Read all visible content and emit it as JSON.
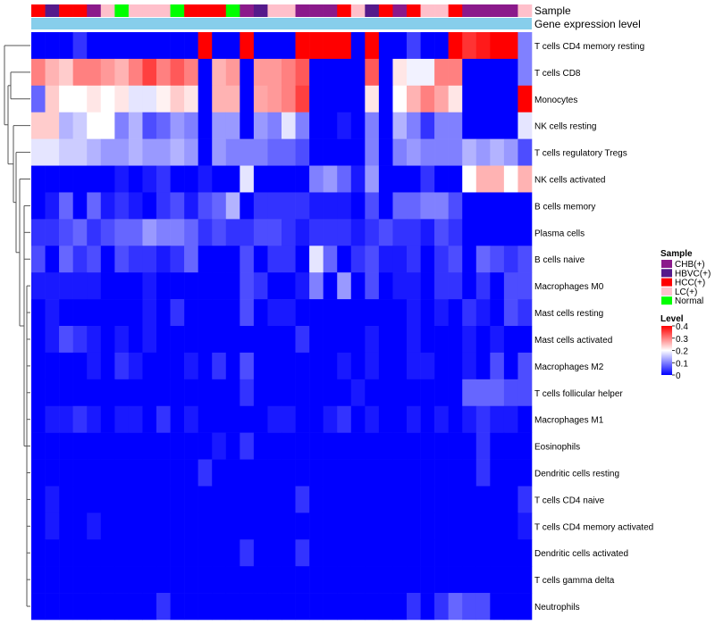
{
  "chart_data": {
    "type": "heatmap",
    "title": "",
    "annotation_tracks": [
      "Sample",
      "Gene expression level"
    ],
    "sample_groups": [
      "HCC(+)",
      "HBVC(+)",
      "HCC(+)",
      "HCC(+)",
      "CHB(+)",
      "LC(+)",
      "Normal",
      "LC(+)",
      "LC(+)",
      "LC(+)",
      "Normal",
      "HCC(+)",
      "HCC(+)",
      "HCC(+)",
      "Normal",
      "CHB(+)",
      "HBVC(+)",
      "LC(+)",
      "LC(+)",
      "CHB(+)",
      "CHB(+)",
      "CHB(+)",
      "HCC(+)",
      "LC(+)",
      "HBVC(+)",
      "HCC(+)",
      "CHB(+)",
      "HCC(+)",
      "LC(+)",
      "LC(+)",
      "HCC(+)",
      "CHB(+)",
      "CHB(+)",
      "CHB(+)",
      "CHB(+)",
      "LC(+)"
    ],
    "rows": [
      "T cells CD4 memory resting",
      "T cells CD8",
      "Monocytes",
      "NK cells resting",
      "T cells regulatory  Tregs",
      "NK cells activated",
      "B cells memory",
      "Plasma cells",
      "B cells naive",
      "Macrophages M0",
      "Mast cells resting",
      "Mast cells activated",
      "Macrophages M2",
      "T cells follicular helper",
      "Macrophages M1",
      "Eosinophils",
      "Dendritic cells resting",
      "T cells CD4 naive",
      "T cells CD4 memory activated",
      "Dendritic cells activated",
      "T cells gamma delta",
      "Neutrophils"
    ],
    "values": [
      [
        0.0,
        0.0,
        0.0,
        0.04,
        0.0,
        0.0,
        0.0,
        0.0,
        0.0,
        0.0,
        0.0,
        0.0,
        0.4,
        0.0,
        0.0,
        0.4,
        0.0,
        0.0,
        0.0,
        0.4,
        0.4,
        0.4,
        0.4,
        0.0,
        0.4,
        0.0,
        0.0,
        0.05,
        0.0,
        0.0,
        0.4,
        0.36,
        0.38,
        0.4,
        0.4,
        0.1
      ],
      [
        0.3,
        0.26,
        0.24,
        0.3,
        0.3,
        0.28,
        0.26,
        0.3,
        0.35,
        0.3,
        0.33,
        0.3,
        0.0,
        0.26,
        0.28,
        0.0,
        0.28,
        0.28,
        0.3,
        0.33,
        0.0,
        0.0,
        0.0,
        0.0,
        0.33,
        0.0,
        0.22,
        0.19,
        0.19,
        0.3,
        0.3,
        0.0,
        0.0,
        0.0,
        0.0,
        0.1
      ],
      [
        0.08,
        0.24,
        0.2,
        0.2,
        0.22,
        0.2,
        0.22,
        0.18,
        0.18,
        0.21,
        0.24,
        0.22,
        0.0,
        0.26,
        0.26,
        0.0,
        0.27,
        0.28,
        0.3,
        0.35,
        0.0,
        0.0,
        0.0,
        0.0,
        0.22,
        0.0,
        0.2,
        0.26,
        0.3,
        0.27,
        0.22,
        0.0,
        0.0,
        0.0,
        0.0,
        0.4
      ],
      [
        0.24,
        0.24,
        0.14,
        0.16,
        0.2,
        0.2,
        0.1,
        0.14,
        0.06,
        0.08,
        0.12,
        0.1,
        0.0,
        0.12,
        0.12,
        0.0,
        0.12,
        0.1,
        0.18,
        0.1,
        0.0,
        0.0,
        0.02,
        0.0,
        0.1,
        0.0,
        0.14,
        0.1,
        0.04,
        0.1,
        0.1,
        0.0,
        0.0,
        0.0,
        0.0,
        0.18
      ],
      [
        0.18,
        0.18,
        0.16,
        0.16,
        0.14,
        0.12,
        0.12,
        0.14,
        0.12,
        0.12,
        0.14,
        0.12,
        0.0,
        0.12,
        0.1,
        0.1,
        0.1,
        0.08,
        0.08,
        0.06,
        0.0,
        0.0,
        0.0,
        0.0,
        0.1,
        0.0,
        0.1,
        0.12,
        0.1,
        0.1,
        0.1,
        0.14,
        0.12,
        0.14,
        0.12,
        0.06
      ],
      [
        0.0,
        0.0,
        0.0,
        0.0,
        0.0,
        0.0,
        0.02,
        0.0,
        0.02,
        0.04,
        0.0,
        0.0,
        0.02,
        0.0,
        0.0,
        0.18,
        0.0,
        0.0,
        0.0,
        0.0,
        0.1,
        0.12,
        0.08,
        0.02,
        0.12,
        0.0,
        0.0,
        0.0,
        0.04,
        0.0,
        0.0,
        0.2,
        0.26,
        0.26,
        0.2,
        0.26
      ],
      [
        0.0,
        0.02,
        0.08,
        0.0,
        0.08,
        0.02,
        0.04,
        0.02,
        0.0,
        0.04,
        0.06,
        0.02,
        0.06,
        0.08,
        0.14,
        0.0,
        0.04,
        0.04,
        0.04,
        0.04,
        0.02,
        0.02,
        0.02,
        0.0,
        0.06,
        0.0,
        0.08,
        0.08,
        0.1,
        0.1,
        0.06,
        0.0,
        0.0,
        0.0,
        0.0,
        0.0
      ],
      [
        0.04,
        0.04,
        0.06,
        0.08,
        0.04,
        0.06,
        0.08,
        0.08,
        0.12,
        0.1,
        0.1,
        0.08,
        0.04,
        0.06,
        0.04,
        0.04,
        0.06,
        0.06,
        0.04,
        0.02,
        0.04,
        0.04,
        0.04,
        0.02,
        0.04,
        0.06,
        0.04,
        0.04,
        0.02,
        0.06,
        0.04,
        0.0,
        0.0,
        0.0,
        0.0,
        0.0
      ],
      [
        0.06,
        0.0,
        0.08,
        0.04,
        0.06,
        0.0,
        0.06,
        0.04,
        0.04,
        0.02,
        0.04,
        0.08,
        0.0,
        0.0,
        0.0,
        0.06,
        0.0,
        0.04,
        0.04,
        0.0,
        0.18,
        0.08,
        0.0,
        0.04,
        0.06,
        0.02,
        0.02,
        0.04,
        0.0,
        0.04,
        0.06,
        0.0,
        0.08,
        0.06,
        0.04,
        0.06
      ],
      [
        0.02,
        0.02,
        0.02,
        0.02,
        0.02,
        0.0,
        0.0,
        0.0,
        0.02,
        0.0,
        0.0,
        0.0,
        0.0,
        0.0,
        0.0,
        0.06,
        0.04,
        0.0,
        0.0,
        0.02,
        0.1,
        0.0,
        0.12,
        0.0,
        0.06,
        0.0,
        0.02,
        0.02,
        0.0,
        0.04,
        0.04,
        0.0,
        0.04,
        0.0,
        0.06,
        0.06
      ],
      [
        0.0,
        0.02,
        0.0,
        0.0,
        0.0,
        0.0,
        0.0,
        0.0,
        0.02,
        0.0,
        0.04,
        0.0,
        0.0,
        0.0,
        0.0,
        0.06,
        0.0,
        0.02,
        0.02,
        0.0,
        0.0,
        0.0,
        0.0,
        0.0,
        0.0,
        0.0,
        0.0,
        0.02,
        0.0,
        0.02,
        0.0,
        0.04,
        0.02,
        0.0,
        0.06,
        0.04
      ],
      [
        0.0,
        0.02,
        0.06,
        0.04,
        0.02,
        0.0,
        0.02,
        0.0,
        0.02,
        0.0,
        0.0,
        0.0,
        0.0,
        0.0,
        0.0,
        0.0,
        0.0,
        0.0,
        0.0,
        0.04,
        0.0,
        0.0,
        0.0,
        0.0,
        0.02,
        0.0,
        0.0,
        0.02,
        0.0,
        0.0,
        0.0,
        0.02,
        0.0,
        0.02,
        0.0,
        0.0
      ],
      [
        0.0,
        0.0,
        0.0,
        0.0,
        0.02,
        0.0,
        0.04,
        0.02,
        0.0,
        0.0,
        0.0,
        0.02,
        0.0,
        0.04,
        0.0,
        0.06,
        0.0,
        0.0,
        0.0,
        0.0,
        0.0,
        0.0,
        0.02,
        0.0,
        0.02,
        0.0,
        0.0,
        0.02,
        0.02,
        0.0,
        0.0,
        0.02,
        0.0,
        0.06,
        0.0,
        0.06
      ],
      [
        0.0,
        0.0,
        0.0,
        0.0,
        0.0,
        0.0,
        0.0,
        0.0,
        0.0,
        0.0,
        0.0,
        0.0,
        0.0,
        0.0,
        0.0,
        0.04,
        0.0,
        0.0,
        0.0,
        0.0,
        0.0,
        0.0,
        0.0,
        0.02,
        0.0,
        0.0,
        0.0,
        0.0,
        0.0,
        0.0,
        0.0,
        0.08,
        0.08,
        0.08,
        0.06,
        0.06
      ],
      [
        0.0,
        0.02,
        0.02,
        0.04,
        0.02,
        0.0,
        0.02,
        0.02,
        0.0,
        0.04,
        0.0,
        0.02,
        0.0,
        0.0,
        0.0,
        0.0,
        0.0,
        0.02,
        0.02,
        0.0,
        0.0,
        0.02,
        0.04,
        0.0,
        0.02,
        0.0,
        0.0,
        0.02,
        0.0,
        0.02,
        0.0,
        0.02,
        0.04,
        0.02,
        0.02,
        0.0
      ],
      [
        0.0,
        0.0,
        0.0,
        0.0,
        0.0,
        0.0,
        0.0,
        0.0,
        0.0,
        0.0,
        0.0,
        0.0,
        0.0,
        0.02,
        0.0,
        0.04,
        0.0,
        0.0,
        0.0,
        0.0,
        0.0,
        0.0,
        0.0,
        0.0,
        0.0,
        0.0,
        0.0,
        0.0,
        0.0,
        0.0,
        0.0,
        0.0,
        0.04,
        0.0,
        0.0,
        0.0
      ],
      [
        0.0,
        0.0,
        0.0,
        0.0,
        0.0,
        0.0,
        0.0,
        0.0,
        0.0,
        0.0,
        0.0,
        0.0,
        0.04,
        0.0,
        0.0,
        0.0,
        0.0,
        0.0,
        0.0,
        0.0,
        0.0,
        0.0,
        0.0,
        0.0,
        0.0,
        0.0,
        0.0,
        0.0,
        0.0,
        0.0,
        0.0,
        0.0,
        0.04,
        0.0,
        0.0,
        0.0
      ],
      [
        0.0,
        0.02,
        0.0,
        0.0,
        0.0,
        0.0,
        0.0,
        0.0,
        0.0,
        0.0,
        0.0,
        0.0,
        0.0,
        0.0,
        0.0,
        0.0,
        0.0,
        0.0,
        0.0,
        0.04,
        0.0,
        0.0,
        0.0,
        0.0,
        0.0,
        0.0,
        0.0,
        0.0,
        0.0,
        0.0,
        0.0,
        0.0,
        0.0,
        0.0,
        0.0,
        0.04
      ],
      [
        0.0,
        0.02,
        0.0,
        0.0,
        0.02,
        0.0,
        0.0,
        0.0,
        0.0,
        0.0,
        0.0,
        0.0,
        0.0,
        0.0,
        0.0,
        0.0,
        0.0,
        0.0,
        0.0,
        0.0,
        0.0,
        0.0,
        0.0,
        0.0,
        0.0,
        0.0,
        0.0,
        0.0,
        0.0,
        0.0,
        0.0,
        0.0,
        0.0,
        0.0,
        0.0,
        0.02
      ],
      [
        0.0,
        0.0,
        0.0,
        0.0,
        0.0,
        0.0,
        0.0,
        0.0,
        0.0,
        0.0,
        0.0,
        0.0,
        0.0,
        0.0,
        0.0,
        0.04,
        0.0,
        0.0,
        0.0,
        0.04,
        0.0,
        0.0,
        0.0,
        0.0,
        0.0,
        0.0,
        0.0,
        0.0,
        0.0,
        0.0,
        0.0,
        0.0,
        0.0,
        0.0,
        0.0,
        0.0
      ],
      [
        0.0,
        0.0,
        0.0,
        0.0,
        0.0,
        0.0,
        0.0,
        0.0,
        0.0,
        0.0,
        0.0,
        0.0,
        0.0,
        0.0,
        0.0,
        0.0,
        0.0,
        0.0,
        0.0,
        0.0,
        0.0,
        0.0,
        0.0,
        0.0,
        0.0,
        0.0,
        0.0,
        0.0,
        0.0,
        0.0,
        0.0,
        0.0,
        0.0,
        0.0,
        0.0,
        0.0
      ],
      [
        0.0,
        0.0,
        0.0,
        0.0,
        0.0,
        0.0,
        0.0,
        0.0,
        0.0,
        0.04,
        0.0,
        0.0,
        0.0,
        0.0,
        0.0,
        0.0,
        0.0,
        0.0,
        0.0,
        0.0,
        0.0,
        0.0,
        0.0,
        0.0,
        0.0,
        0.0,
        0.0,
        0.04,
        0.0,
        0.04,
        0.08,
        0.06,
        0.06,
        0.0,
        0.0,
        0.0
      ]
    ],
    "legend_sample": {
      "title": "Sample",
      "items": [
        {
          "label": "CHB(+)",
          "color": "#8b1a8b"
        },
        {
          "label": "HBVC(+)",
          "color": "#551a8b"
        },
        {
          "label": "HCC(+)",
          "color": "#ff0000"
        },
        {
          "label": "LC(+)",
          "color": "#ffc0cb"
        },
        {
          "label": "Normal",
          "color": "#00ff00"
        }
      ]
    },
    "legend_level": {
      "title": "Level",
      "ticks": [
        "0.4",
        "0.3",
        "0.2",
        "0.1",
        "0"
      ],
      "tick_values": [
        0.4,
        0.3,
        0.2,
        0.1,
        0
      ],
      "range": [
        0,
        0.4
      ]
    },
    "expression_bar_color": "#87ceeb",
    "colorscale": [
      "#0000ff",
      "#ffffff",
      "#ff0000"
    ]
  }
}
